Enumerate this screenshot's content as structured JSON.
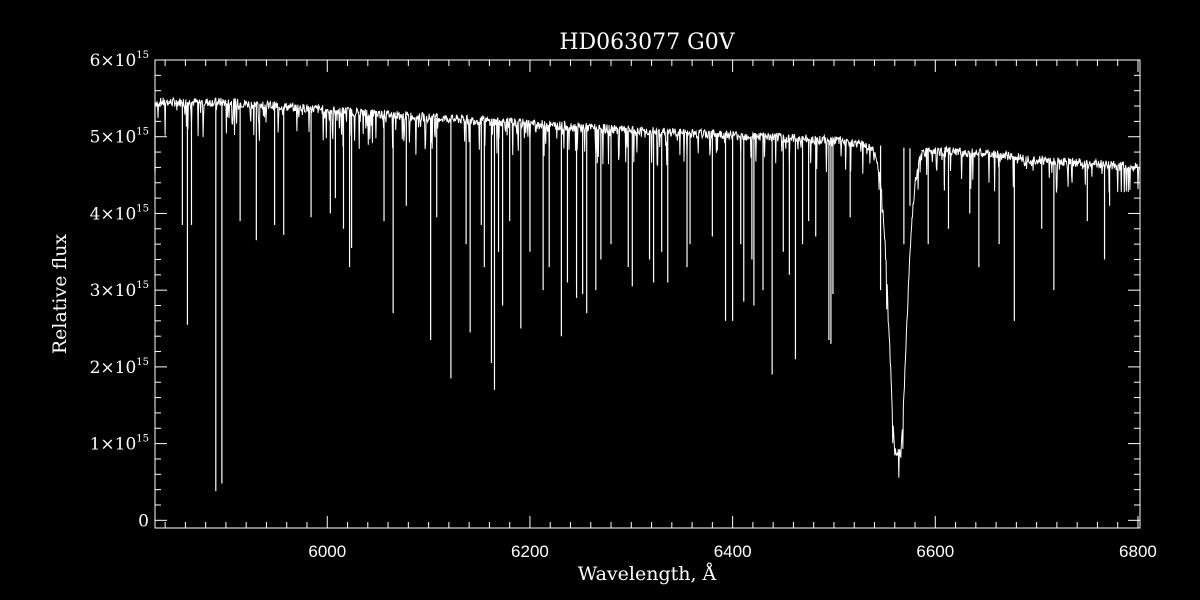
{
  "chart_data": {
    "type": "line",
    "title": "HD063077   G0V",
    "xlabel": "Wavelength, Å",
    "ylabel": "Relative flux",
    "xlim": [
      5830,
      6802
    ],
    "ylim": [
      -100000000000000.0,
      6000000000000000.0
    ],
    "x_ticks": [
      {
        "value": 6000,
        "label": "6000"
      },
      {
        "value": 6200,
        "label": "6200"
      },
      {
        "value": 6400,
        "label": "6400"
      },
      {
        "value": 6600,
        "label": "6600"
      },
      {
        "value": 6800,
        "label": "6800"
      }
    ],
    "y_ticks": [
      {
        "value": 0,
        "label": "0",
        "exp": ""
      },
      {
        "value": 1000000000000000.0,
        "label": "1×10",
        "exp": "15"
      },
      {
        "value": 2000000000000000.0,
        "label": "2×10",
        "exp": "15"
      },
      {
        "value": 3000000000000000.0,
        "label": "3×10",
        "exp": "15"
      },
      {
        "value": 4000000000000000.0,
        "label": "4×10",
        "exp": "15"
      },
      {
        "value": 5000000000000000.0,
        "label": "5×10",
        "exp": "15"
      },
      {
        "value": 6000000000000000.0,
        "label": "6×10",
        "exp": "15"
      }
    ],
    "continuum": {
      "x": [
        5830,
        5900,
        6000,
        6100,
        6200,
        6300,
        6400,
        6500,
        6550,
        6600,
        6650,
        6700,
        6802
      ],
      "y": [
        5450000000000000.0,
        5450000000000000.0,
        5350000000000000.0,
        5250000000000000.0,
        5170000000000000.0,
        5080000000000000.0,
        5020000000000000.0,
        4950000000000000.0,
        4880000000000000.0,
        4820000000000000.0,
        4780000000000000.0,
        4700000000000000.0,
        4600000000000000.0
      ]
    },
    "h_alpha": {
      "center": 6563,
      "min": 880000000000000.0,
      "halfwidth": 8
    },
    "absorption_lines": [
      {
        "x": 5830,
        "y": 4550000000000000.0
      },
      {
        "x": 5857,
        "y": 3850000000000000.0
      },
      {
        "x": 5862,
        "y": 2550000000000000.0
      },
      {
        "x": 5866,
        "y": 3850000000000000.0
      },
      {
        "x": 5890,
        "y": 380000000000000.0
      },
      {
        "x": 5896,
        "y": 480000000000000.0
      },
      {
        "x": 5914,
        "y": 3900000000000000.0
      },
      {
        "x": 5930,
        "y": 3650000000000000.0
      },
      {
        "x": 5948,
        "y": 3850000000000000.0
      },
      {
        "x": 5957,
        "y": 3720000000000000.0
      },
      {
        "x": 5984,
        "y": 3950000000000000.0
      },
      {
        "x": 6003,
        "y": 4000000000000000.0
      },
      {
        "x": 6008,
        "y": 4200000000000000.0
      },
      {
        "x": 6016,
        "y": 3800000000000000.0
      },
      {
        "x": 6022,
        "y": 3300000000000000.0
      },
      {
        "x": 6024,
        "y": 3550000000000000.0
      },
      {
        "x": 6056,
        "y": 3900000000000000.0
      },
      {
        "x": 6065,
        "y": 2700000000000000.0
      },
      {
        "x": 6078,
        "y": 4100000000000000.0
      },
      {
        "x": 6102,
        "y": 2350000000000000.0
      },
      {
        "x": 6108,
        "y": 3950000000000000.0
      },
      {
        "x": 6122,
        "y": 1850000000000000.0
      },
      {
        "x": 6137,
        "y": 3600000000000000.0
      },
      {
        "x": 6141,
        "y": 2450000000000000.0
      },
      {
        "x": 6152,
        "y": 3850000000000000.0
      },
      {
        "x": 6155,
        "y": 3300000000000000.0
      },
      {
        "x": 6162,
        "y": 2050000000000000.0
      },
      {
        "x": 6165,
        "y": 1700000000000000.0
      },
      {
        "x": 6169,
        "y": 3500000000000000.0
      },
      {
        "x": 6173,
        "y": 2800000000000000.0
      },
      {
        "x": 6180,
        "y": 3900000000000000.0
      },
      {
        "x": 6191,
        "y": 2500000000000000.0
      },
      {
        "x": 6200,
        "y": 3500000000000000.0
      },
      {
        "x": 6213,
        "y": 3000000000000000.0
      },
      {
        "x": 6219,
        "y": 3300000000000000.0
      },
      {
        "x": 6231,
        "y": 2400000000000000.0
      },
      {
        "x": 6237,
        "y": 3100000000000000.0
      },
      {
        "x": 6246,
        "y": 2900000000000000.0
      },
      {
        "x": 6252,
        "y": 2950000000000000.0
      },
      {
        "x": 6256,
        "y": 2700000000000000.0
      },
      {
        "x": 6265,
        "y": 3000000000000000.0
      },
      {
        "x": 6270,
        "y": 3400000000000000.0
      },
      {
        "x": 6280,
        "y": 3600000000000000.0
      },
      {
        "x": 6297,
        "y": 3300000000000000.0
      },
      {
        "x": 6301,
        "y": 3050000000000000.0
      },
      {
        "x": 6318,
        "y": 3400000000000000.0
      },
      {
        "x": 6322,
        "y": 3100000000000000.0
      },
      {
        "x": 6330,
        "y": 3500000000000000.0
      },
      {
        "x": 6336,
        "y": 3100000000000000.0
      },
      {
        "x": 6355,
        "y": 3300000000000000.0
      },
      {
        "x": 6358,
        "y": 3600000000000000.0
      },
      {
        "x": 6380,
        "y": 3700000000000000.0
      },
      {
        "x": 6393,
        "y": 2600000000000000.0
      },
      {
        "x": 6400,
        "y": 2600000000000000.0
      },
      {
        "x": 6408,
        "y": 3600000000000000.0
      },
      {
        "x": 6411,
        "y": 2850000000000000.0
      },
      {
        "x": 6419,
        "y": 3400000000000000.0
      },
      {
        "x": 6421,
        "y": 2800000000000000.0
      },
      {
        "x": 6430,
        "y": 3000000000000000.0
      },
      {
        "x": 6439,
        "y": 1900000000000000.0
      },
      {
        "x": 6450,
        "y": 3500000000000000.0
      },
      {
        "x": 6456,
        "y": 3200000000000000.0
      },
      {
        "x": 6462,
        "y": 2100000000000000.0
      },
      {
        "x": 6469,
        "y": 3600000000000000.0
      },
      {
        "x": 6475,
        "y": 3900000000000000.0
      },
      {
        "x": 6482,
        "y": 3700000000000000.0
      },
      {
        "x": 6495,
        "y": 2350000000000000.0
      },
      {
        "x": 6497,
        "y": 2300000000000000.0
      },
      {
        "x": 6499,
        "y": 2950000000000000.0
      },
      {
        "x": 6516,
        "y": 3950000000000000.0
      },
      {
        "x": 6546,
        "y": 3000000000000000.0
      },
      {
        "x": 6569,
        "y": 3600000000000000.0
      },
      {
        "x": 6575,
        "y": 4100000000000000.0
      },
      {
        "x": 6593,
        "y": 3600000000000000.0
      },
      {
        "x": 6609,
        "y": 4300000000000000.0
      },
      {
        "x": 6613,
        "y": 3800000000000000.0
      },
      {
        "x": 6634,
        "y": 4000000000000000.0
      },
      {
        "x": 6643,
        "y": 3300000000000000.0
      },
      {
        "x": 6663,
        "y": 3600000000000000.0
      },
      {
        "x": 6678,
        "y": 2600000000000000.0
      },
      {
        "x": 6705,
        "y": 3800000000000000.0
      },
      {
        "x": 6717,
        "y": 3000000000000000.0
      },
      {
        "x": 6750,
        "y": 3900000000000000.0
      },
      {
        "x": 6767,
        "y": 3400000000000000.0
      },
      {
        "x": 6772,
        "y": 4100000000000000.0
      }
    ],
    "grid": false,
    "color": "#ffffff",
    "background": "#000000"
  }
}
